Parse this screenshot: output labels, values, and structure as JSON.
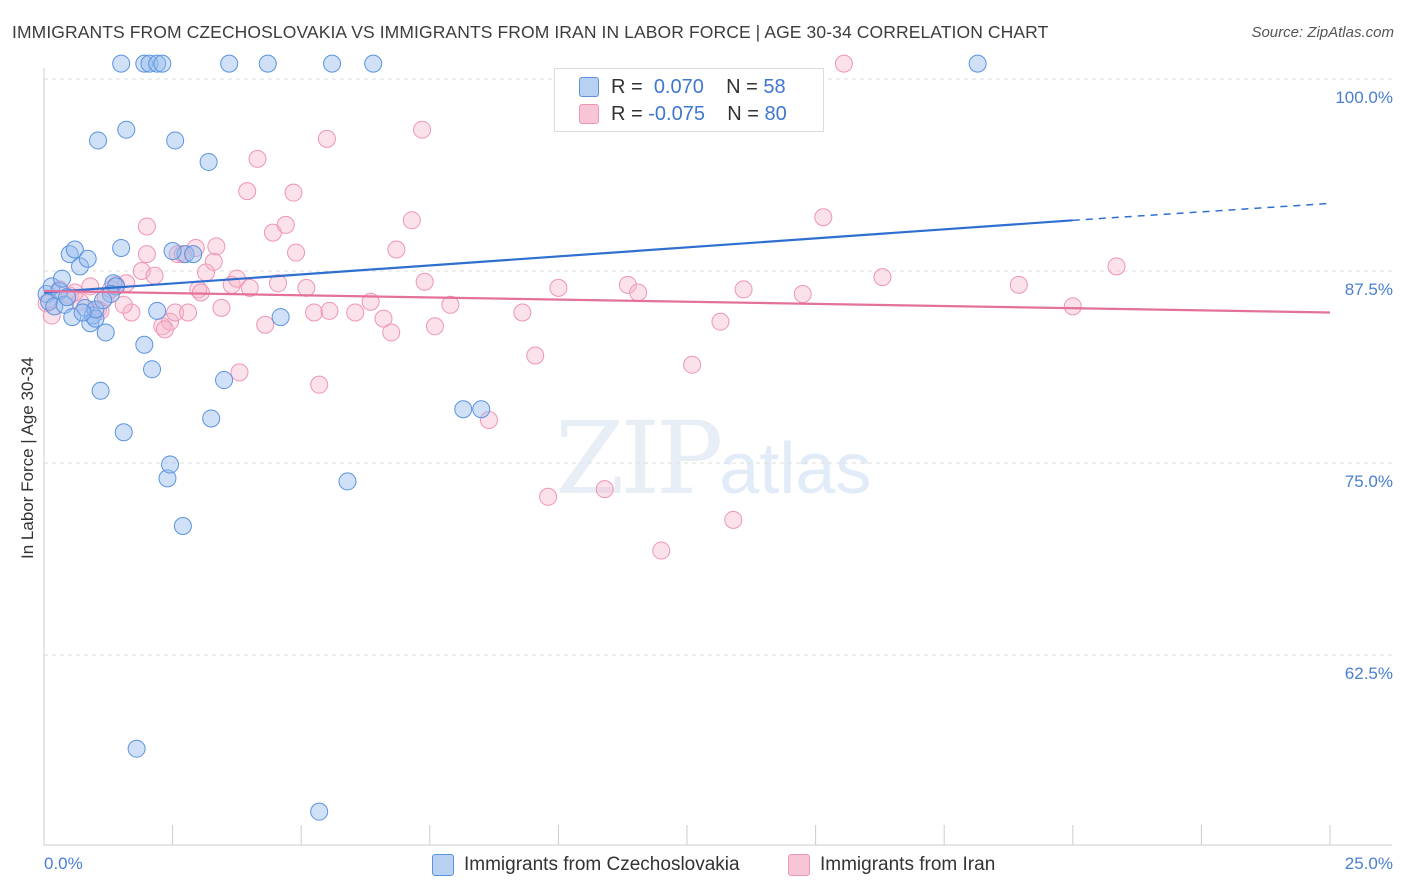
{
  "title": "IMMIGRANTS FROM CZECHOSLOVAKIA VS IMMIGRANTS FROM IRAN IN LABOR FORCE | AGE 30-34 CORRELATION CHART",
  "source": "Source: ZipAtlas.com",
  "watermark": {
    "zip": "ZIP",
    "atlas": "atlas"
  },
  "legend": {
    "rows": [
      {
        "r_label": "R =",
        "r_value": "0.070",
        "n_label": "N =",
        "n_value": "58"
      },
      {
        "r_label": "R =",
        "r_value": "-0.075",
        "n_label": "N =",
        "n_value": "80"
      }
    ]
  },
  "colors": {
    "blue": "#5b93e0",
    "blue_fill": "#b8d0f2",
    "blue_line": "#2f6fd0",
    "pink": "#f096b5",
    "pink_fill": "#f7c5d6",
    "pink_line": "#e4719b",
    "tick": "#4a7fd0"
  },
  "chart_data": {
    "type": "scatter",
    "title": "IMMIGRANTS FROM CZECHOSLOVAKIA VS IMMIGRANTS FROM IRAN IN LABOR FORCE | AGE 30-34 CORRELATION CHART",
    "xlabel": "",
    "ylabel": "In Labor Force | Age 30-34",
    "xlim": [
      0,
      25
    ],
    "ylim": [
      50,
      102
    ],
    "x_tick_labels": [
      "0.0%",
      "25.0%"
    ],
    "y_ticks": [
      100,
      87.5,
      75,
      62.5
    ],
    "y_tick_labels": [
      "100.0%",
      "87.5%",
      "75.0%",
      "62.5%"
    ],
    "series": [
      {
        "name": "Immigrants from Czechoslovakia",
        "color": "blue",
        "points": [
          [
            0.05,
            86.0
          ],
          [
            0.1,
            85.5
          ],
          [
            0.15,
            86.5
          ],
          [
            0.2,
            85.2
          ],
          [
            0.3,
            86.2
          ],
          [
            0.35,
            87.0
          ],
          [
            0.4,
            85.3
          ],
          [
            0.5,
            88.6
          ],
          [
            0.55,
            84.5
          ],
          [
            0.6,
            88.9
          ],
          [
            0.7,
            87.8
          ],
          [
            0.8,
            85.1
          ],
          [
            0.85,
            88.3
          ],
          [
            0.9,
            84.1
          ],
          [
            0.95,
            84.6
          ],
          [
            1.0,
            84.4
          ],
          [
            1.05,
            96.0
          ],
          [
            1.1,
            79.7
          ],
          [
            1.2,
            83.5
          ],
          [
            1.35,
            86.7
          ],
          [
            1.4,
            86.5
          ],
          [
            1.5,
            89.0
          ],
          [
            1.55,
            77.0
          ],
          [
            1.6,
            96.7
          ],
          [
            1.5,
            101.0
          ],
          [
            1.95,
            101.0
          ],
          [
            2.05,
            101.0
          ],
          [
            2.2,
            101.0
          ],
          [
            2.3,
            101.0
          ],
          [
            1.95,
            82.7
          ],
          [
            2.1,
            81.1
          ],
          [
            2.2,
            84.9
          ],
          [
            2.4,
            74.0
          ],
          [
            2.45,
            74.9
          ],
          [
            2.55,
            96.0
          ],
          [
            2.7,
            70.9
          ],
          [
            2.75,
            88.6
          ],
          [
            3.2,
            94.6
          ],
          [
            3.25,
            77.9
          ],
          [
            3.5,
            80.4
          ],
          [
            3.6,
            101.0
          ],
          [
            4.35,
            101.0
          ],
          [
            4.6,
            84.5
          ],
          [
            5.35,
            52.3
          ],
          [
            5.6,
            101.0
          ],
          [
            5.9,
            73.8
          ],
          [
            6.4,
            101.0
          ],
          [
            8.15,
            78.5
          ],
          [
            8.5,
            78.5
          ],
          [
            18.15,
            101.0
          ],
          [
            1.8,
            56.4
          ],
          [
            2.9,
            88.6
          ],
          [
            1.0,
            85.0
          ],
          [
            0.75,
            84.8
          ],
          [
            1.3,
            86.0
          ],
          [
            0.45,
            85.8
          ],
          [
            2.5,
            88.8
          ],
          [
            1.15,
            85.6
          ]
        ]
      },
      {
        "name": "Immigrants from Iran",
        "color": "pink",
        "points": [
          [
            0.05,
            85.4
          ],
          [
            0.3,
            86.3
          ],
          [
            0.5,
            85.9
          ],
          [
            0.7,
            85.5
          ],
          [
            0.9,
            86.5
          ],
          [
            1.05,
            85.0
          ],
          [
            1.1,
            84.9
          ],
          [
            1.2,
            85.8
          ],
          [
            1.4,
            86.6
          ],
          [
            1.6,
            86.7
          ],
          [
            1.7,
            84.8
          ],
          [
            1.9,
            87.5
          ],
          [
            2.0,
            88.6
          ],
          [
            2.0,
            90.4
          ],
          [
            2.15,
            87.2
          ],
          [
            2.3,
            83.9
          ],
          [
            2.45,
            84.2
          ],
          [
            2.55,
            84.8
          ],
          [
            2.6,
            88.6
          ],
          [
            2.7,
            88.6
          ],
          [
            2.8,
            84.8
          ],
          [
            2.95,
            89.0
          ],
          [
            3.0,
            86.3
          ],
          [
            3.05,
            86.1
          ],
          [
            3.15,
            87.4
          ],
          [
            3.3,
            88.1
          ],
          [
            3.35,
            89.1
          ],
          [
            3.65,
            86.6
          ],
          [
            3.75,
            87.0
          ],
          [
            3.8,
            80.9
          ],
          [
            3.95,
            92.7
          ],
          [
            4.15,
            94.8
          ],
          [
            4.3,
            84.0
          ],
          [
            4.45,
            90.0
          ],
          [
            4.55,
            86.7
          ],
          [
            4.7,
            90.5
          ],
          [
            4.85,
            92.6
          ],
          [
            4.9,
            88.7
          ],
          [
            5.1,
            86.4
          ],
          [
            5.25,
            84.8
          ],
          [
            5.35,
            80.1
          ],
          [
            5.5,
            96.1
          ],
          [
            5.55,
            84.9
          ],
          [
            6.35,
            85.5
          ],
          [
            6.6,
            84.4
          ],
          [
            6.75,
            83.5
          ],
          [
            6.85,
            88.9
          ],
          [
            7.15,
            90.8
          ],
          [
            7.35,
            96.7
          ],
          [
            7.4,
            86.8
          ],
          [
            7.6,
            83.9
          ],
          [
            7.9,
            85.3
          ],
          [
            8.65,
            77.8
          ],
          [
            9.3,
            84.8
          ],
          [
            9.55,
            82.0
          ],
          [
            9.8,
            72.8
          ],
          [
            10.0,
            86.4
          ],
          [
            10.9,
            73.3
          ],
          [
            11.35,
            86.6
          ],
          [
            11.55,
            86.1
          ],
          [
            12.0,
            69.3
          ],
          [
            12.6,
            81.4
          ],
          [
            13.15,
            84.2
          ],
          [
            13.4,
            71.3
          ],
          [
            13.6,
            86.3
          ],
          [
            14.75,
            86.0
          ],
          [
            15.15,
            91.0
          ],
          [
            15.55,
            101.0
          ],
          [
            16.3,
            87.1
          ],
          [
            18.95,
            86.6
          ],
          [
            20.0,
            85.2
          ],
          [
            20.85,
            87.8
          ],
          [
            1.3,
            86.3
          ],
          [
            2.35,
            83.7
          ],
          [
            0.15,
            84.6
          ],
          [
            0.6,
            86.1
          ],
          [
            1.55,
            85.3
          ],
          [
            3.45,
            85.1
          ],
          [
            4.0,
            86.4
          ],
          [
            6.05,
            84.8
          ]
        ]
      }
    ],
    "trend_lines": [
      {
        "series": "Immigrants from Czechoslovakia",
        "x": [
          0,
          20
        ],
        "y": [
          86.1,
          90.8
        ],
        "dashed_extension": [
          20,
          25,
          90.8,
          91.9
        ]
      },
      {
        "series": "Immigrants from Iran",
        "x": [
          0,
          25
        ],
        "y": [
          86.2,
          84.8
        ]
      }
    ],
    "legend_position": "top-center"
  }
}
